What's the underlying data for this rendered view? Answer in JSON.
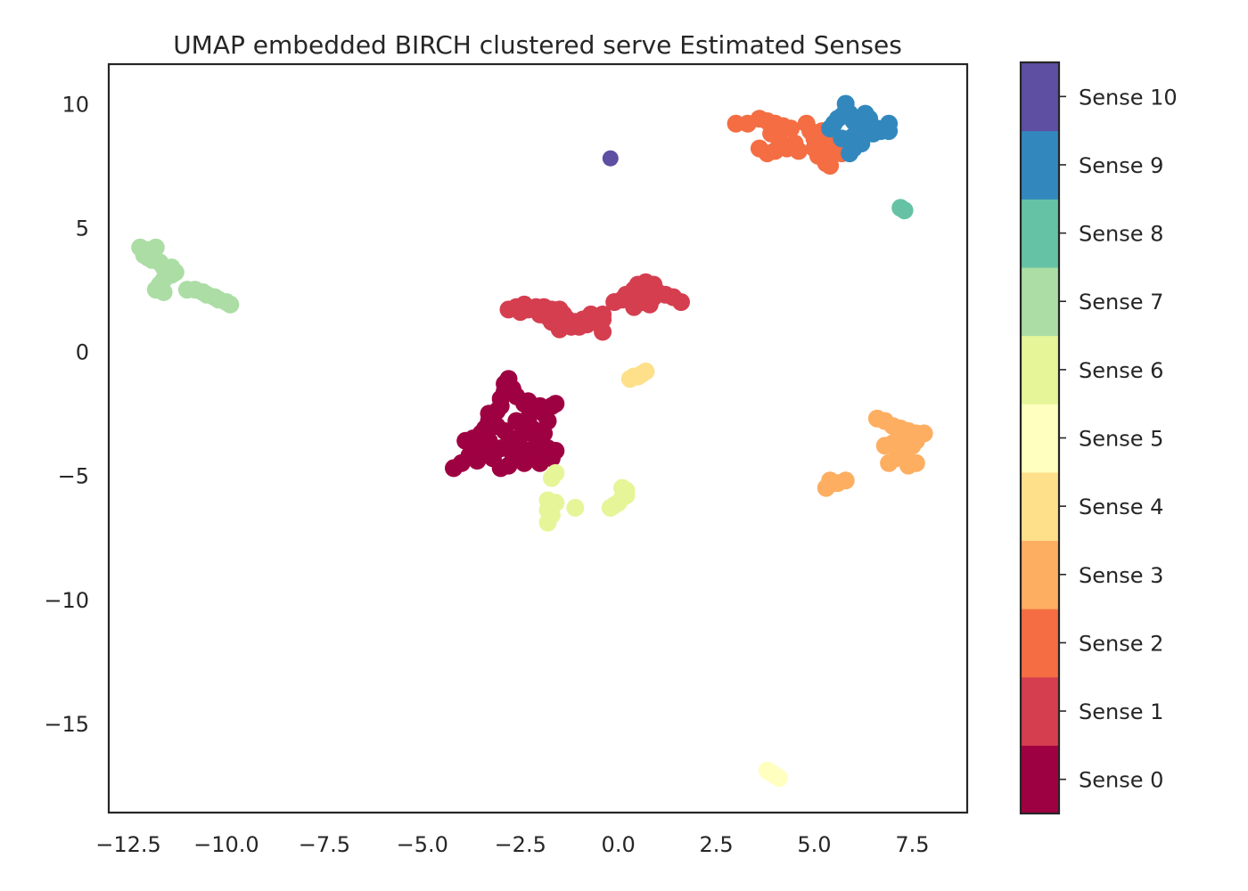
{
  "chart_data": {
    "type": "scatter",
    "title": "UMAP embedded BIRCH clustered serve Estimated Senses",
    "xlabel": "",
    "ylabel": "",
    "xlim": [
      -13.0,
      8.9
    ],
    "ylim": [
      -18.6,
      11.6
    ],
    "xticks": [
      -12.5,
      -10.0,
      -7.5,
      -5.0,
      -2.5,
      0.0,
      2.5,
      5.0,
      7.5
    ],
    "xtick_labels": [
      "−12.5",
      "−10.0",
      "−7.5",
      "−5.0",
      "−2.5",
      "0.0",
      "2.5",
      "5.0",
      "7.5"
    ],
    "yticks": [
      10,
      5,
      0,
      -5,
      -10,
      -15
    ],
    "ytick_labels": [
      "10",
      "5",
      "0",
      "−5",
      "−10",
      "−15"
    ],
    "grid": false,
    "colorbar": {
      "labels": [
        "Sense 0",
        "Sense 1",
        "Sense 2",
        "Sense 3",
        "Sense 4",
        "Sense 5",
        "Sense 6",
        "Sense 7",
        "Sense 8",
        "Sense 9",
        "Sense 10"
      ],
      "colors": [
        "#9e0142",
        "#d53e4f",
        "#f46d43",
        "#fdae61",
        "#fee08b",
        "#ffffbf",
        "#e6f598",
        "#abdda4",
        "#66c2a5",
        "#3288bd",
        "#5e4fa2"
      ]
    },
    "series": [
      {
        "sense": 0,
        "points": [
          [
            -4.2,
            -4.7
          ],
          [
            -4.0,
            -4.5
          ],
          [
            -3.8,
            -4.2
          ],
          [
            -3.6,
            -4.0
          ],
          [
            -3.9,
            -3.6
          ],
          [
            -3.7,
            -3.5
          ],
          [
            -3.5,
            -3.8
          ],
          [
            -3.3,
            -3.6
          ],
          [
            -3.5,
            -3.3
          ],
          [
            -3.4,
            -3.1
          ],
          [
            -3.3,
            -2.8
          ],
          [
            -3.3,
            -2.5
          ],
          [
            -3.1,
            -2.4
          ],
          [
            -3.0,
            -2.2
          ],
          [
            -3.0,
            -1.9
          ],
          [
            -2.9,
            -1.6
          ],
          [
            -2.9,
            -1.3
          ],
          [
            -2.8,
            -1.1
          ],
          [
            -2.7,
            -1.5
          ],
          [
            -2.6,
            -1.8
          ],
          [
            -2.4,
            -2.1
          ],
          [
            -2.3,
            -2.0
          ],
          [
            -2.2,
            -2.3
          ],
          [
            -2.0,
            -2.2
          ],
          [
            -1.9,
            -2.5
          ],
          [
            -1.8,
            -2.8
          ],
          [
            -1.7,
            -2.2
          ],
          [
            -1.6,
            -2.1
          ],
          [
            -1.9,
            -3.3
          ],
          [
            -2.0,
            -3.6
          ],
          [
            -1.8,
            -3.9
          ],
          [
            -1.6,
            -4.0
          ],
          [
            -1.7,
            -4.3
          ],
          [
            -2.0,
            -4.5
          ],
          [
            -2.2,
            -4.3
          ],
          [
            -2.4,
            -4.5
          ],
          [
            -2.6,
            -4.3
          ],
          [
            -2.8,
            -4.6
          ],
          [
            -3.0,
            -4.7
          ],
          [
            -3.2,
            -4.3
          ],
          [
            -3.4,
            -4.1
          ],
          [
            -3.0,
            -3.9
          ],
          [
            -2.8,
            -3.7
          ],
          [
            -2.6,
            -3.5
          ],
          [
            -2.4,
            -3.3
          ],
          [
            -2.2,
            -3.1
          ],
          [
            -2.5,
            -3.9
          ],
          [
            -2.7,
            -4.1
          ],
          [
            -2.3,
            -4.0
          ],
          [
            -2.1,
            -3.8
          ],
          [
            -2.9,
            -3.2
          ],
          [
            -3.1,
            -3.0
          ],
          [
            -2.6,
            -2.8
          ],
          [
            -2.3,
            -2.7
          ],
          [
            -3.6,
            -4.4
          ],
          [
            -1.9,
            -4.2
          ],
          [
            -2.1,
            -3.4
          ]
        ]
      },
      {
        "sense": 1,
        "points": [
          [
            -2.8,
            1.7
          ],
          [
            -2.6,
            1.8
          ],
          [
            -2.4,
            1.9
          ],
          [
            -2.3,
            1.7
          ],
          [
            -2.1,
            1.8
          ],
          [
            -1.9,
            1.8
          ],
          [
            -1.7,
            1.7
          ],
          [
            -1.6,
            1.5
          ],
          [
            -1.5,
            1.7
          ],
          [
            -1.4,
            1.5
          ],
          [
            -1.3,
            1.3
          ],
          [
            -1.1,
            1.2
          ],
          [
            -0.9,
            1.3
          ],
          [
            -0.8,
            1.1
          ],
          [
            -0.6,
            1.2
          ],
          [
            -0.4,
            1.5
          ],
          [
            -0.4,
            1.3
          ],
          [
            -0.4,
            0.8
          ],
          [
            -1.7,
            1.2
          ],
          [
            -1.5,
            0.9
          ],
          [
            -1.2,
            1.0
          ],
          [
            -1.0,
            1.0
          ],
          [
            -0.7,
            1.5
          ],
          [
            -1.8,
            1.4
          ],
          [
            -2.5,
            1.6
          ],
          [
            -2.0,
            1.5
          ],
          [
            -0.1,
            2.0
          ],
          [
            0.1,
            2.1
          ],
          [
            0.2,
            2.3
          ],
          [
            0.4,
            2.5
          ],
          [
            0.5,
            2.7
          ],
          [
            0.7,
            2.8
          ],
          [
            0.9,
            2.7
          ],
          [
            1.0,
            2.4
          ],
          [
            1.2,
            2.3
          ],
          [
            1.4,
            2.2
          ],
          [
            1.6,
            2.0
          ],
          [
            0.6,
            2.0
          ],
          [
            0.8,
            1.9
          ],
          [
            0.4,
            1.8
          ],
          [
            0.3,
            2.1
          ],
          [
            0.9,
            2.2
          ],
          [
            0.7,
            2.4
          ],
          [
            0.5,
            2.3
          ]
        ]
      },
      {
        "sense": 2,
        "points": [
          [
            3.0,
            9.2
          ],
          [
            3.3,
            9.2
          ],
          [
            3.6,
            9.4
          ],
          [
            3.8,
            9.3
          ],
          [
            4.0,
            9.2
          ],
          [
            4.2,
            9.1
          ],
          [
            4.4,
            9.0
          ],
          [
            3.6,
            8.2
          ],
          [
            3.8,
            8.0
          ],
          [
            4.0,
            8.1
          ],
          [
            4.3,
            8.2
          ],
          [
            4.6,
            8.1
          ],
          [
            4.8,
            9.2
          ],
          [
            4.9,
            8.9
          ],
          [
            5.0,
            8.6
          ],
          [
            5.0,
            8.2
          ],
          [
            5.1,
            7.9
          ],
          [
            5.3,
            7.6
          ],
          [
            5.4,
            7.8
          ],
          [
            5.5,
            8.1
          ],
          [
            5.3,
            8.4
          ],
          [
            5.6,
            8.3
          ],
          [
            5.7,
            8.0
          ],
          [
            5.2,
            8.9
          ],
          [
            5.5,
            8.6
          ],
          [
            5.4,
            7.5
          ],
          [
            4.1,
            8.6
          ],
          [
            3.9,
            8.8
          ],
          [
            4.5,
            8.4
          ]
        ]
      },
      {
        "sense": 3,
        "points": [
          [
            6.6,
            -2.7
          ],
          [
            6.8,
            -2.8
          ],
          [
            7.0,
            -3.0
          ],
          [
            7.2,
            -3.1
          ],
          [
            7.4,
            -3.2
          ],
          [
            7.6,
            -3.3
          ],
          [
            7.8,
            -3.3
          ],
          [
            7.6,
            -3.6
          ],
          [
            7.3,
            -3.5
          ],
          [
            7.0,
            -3.7
          ],
          [
            6.8,
            -3.8
          ],
          [
            7.1,
            -3.9
          ],
          [
            7.3,
            -4.1
          ],
          [
            7.1,
            -4.3
          ],
          [
            6.9,
            -4.5
          ],
          [
            7.4,
            -4.6
          ],
          [
            7.6,
            -4.5
          ],
          [
            7.5,
            -3.8
          ],
          [
            5.3,
            -5.5
          ],
          [
            5.4,
            -5.2
          ],
          [
            5.5,
            -5.3
          ],
          [
            5.6,
            -5.3
          ],
          [
            5.8,
            -5.2
          ]
        ]
      },
      {
        "sense": 4,
        "points": [
          [
            0.3,
            -1.1
          ],
          [
            0.4,
            -1.0
          ],
          [
            0.5,
            -1.0
          ],
          [
            0.6,
            -0.9
          ],
          [
            0.7,
            -0.8
          ]
        ]
      },
      {
        "sense": 5,
        "points": [
          [
            3.8,
            -16.9
          ],
          [
            3.9,
            -17.0
          ],
          [
            4.0,
            -17.1
          ],
          [
            4.1,
            -17.2
          ]
        ]
      },
      {
        "sense": 6,
        "points": [
          [
            -1.6,
            -4.9
          ],
          [
            -1.7,
            -5.1
          ],
          [
            -1.8,
            -6.0
          ],
          [
            -1.6,
            -6.1
          ],
          [
            -1.8,
            -6.4
          ],
          [
            -1.7,
            -6.6
          ],
          [
            -1.8,
            -6.9
          ],
          [
            -1.1,
            -6.3
          ],
          [
            -0.2,
            -6.3
          ],
          [
            -0.1,
            -6.2
          ],
          [
            0.0,
            -6.1
          ],
          [
            0.1,
            -5.9
          ],
          [
            0.2,
            -5.8
          ],
          [
            0.2,
            -5.6
          ],
          [
            0.1,
            -5.5
          ]
        ]
      },
      {
        "sense": 7,
        "points": [
          [
            -12.2,
            4.2
          ],
          [
            -12.0,
            4.1
          ],
          [
            -11.8,
            4.2
          ],
          [
            -12.1,
            3.9
          ],
          [
            -11.9,
            3.7
          ],
          [
            -11.7,
            3.6
          ],
          [
            -11.6,
            3.4
          ],
          [
            -11.4,
            3.4
          ],
          [
            -11.4,
            3.1
          ],
          [
            -11.6,
            2.9
          ],
          [
            -11.7,
            2.7
          ],
          [
            -11.6,
            2.4
          ],
          [
            -11.8,
            2.5
          ],
          [
            -11.3,
            3.2
          ],
          [
            -12.0,
            3.8
          ],
          [
            -11.0,
            2.5
          ],
          [
            -10.8,
            2.5
          ],
          [
            -10.6,
            2.4
          ],
          [
            -10.5,
            2.3
          ],
          [
            -10.3,
            2.2
          ],
          [
            -10.2,
            2.1
          ],
          [
            -10.0,
            2.0
          ],
          [
            -9.9,
            1.9
          ]
        ]
      },
      {
        "sense": 8,
        "points": [
          [
            7.2,
            5.8
          ],
          [
            7.3,
            5.7
          ]
        ]
      },
      {
        "sense": 9,
        "points": [
          [
            5.4,
            9.0
          ],
          [
            5.5,
            9.2
          ],
          [
            5.6,
            9.4
          ],
          [
            5.7,
            9.5
          ],
          [
            5.8,
            9.7
          ],
          [
            5.8,
            10.0
          ],
          [
            5.9,
            9.6
          ],
          [
            6.0,
            9.3
          ],
          [
            6.1,
            9.1
          ],
          [
            6.2,
            8.9
          ],
          [
            6.3,
            9.2
          ],
          [
            6.4,
            9.0
          ],
          [
            6.5,
            8.8
          ],
          [
            6.6,
            9.0
          ],
          [
            6.7,
            8.9
          ],
          [
            6.8,
            9.0
          ],
          [
            6.9,
            8.9
          ],
          [
            6.9,
            9.2
          ],
          [
            6.0,
            8.7
          ],
          [
            6.2,
            8.4
          ],
          [
            6.0,
            8.2
          ],
          [
            5.9,
            8.5
          ],
          [
            5.7,
            8.6
          ],
          [
            6.4,
            9.4
          ],
          [
            6.3,
            9.6
          ],
          [
            5.9,
            8.0
          ],
          [
            6.1,
            8.9
          ]
        ]
      },
      {
        "sense": 10,
        "points": [
          [
            -0.2,
            7.8
          ]
        ]
      }
    ]
  }
}
